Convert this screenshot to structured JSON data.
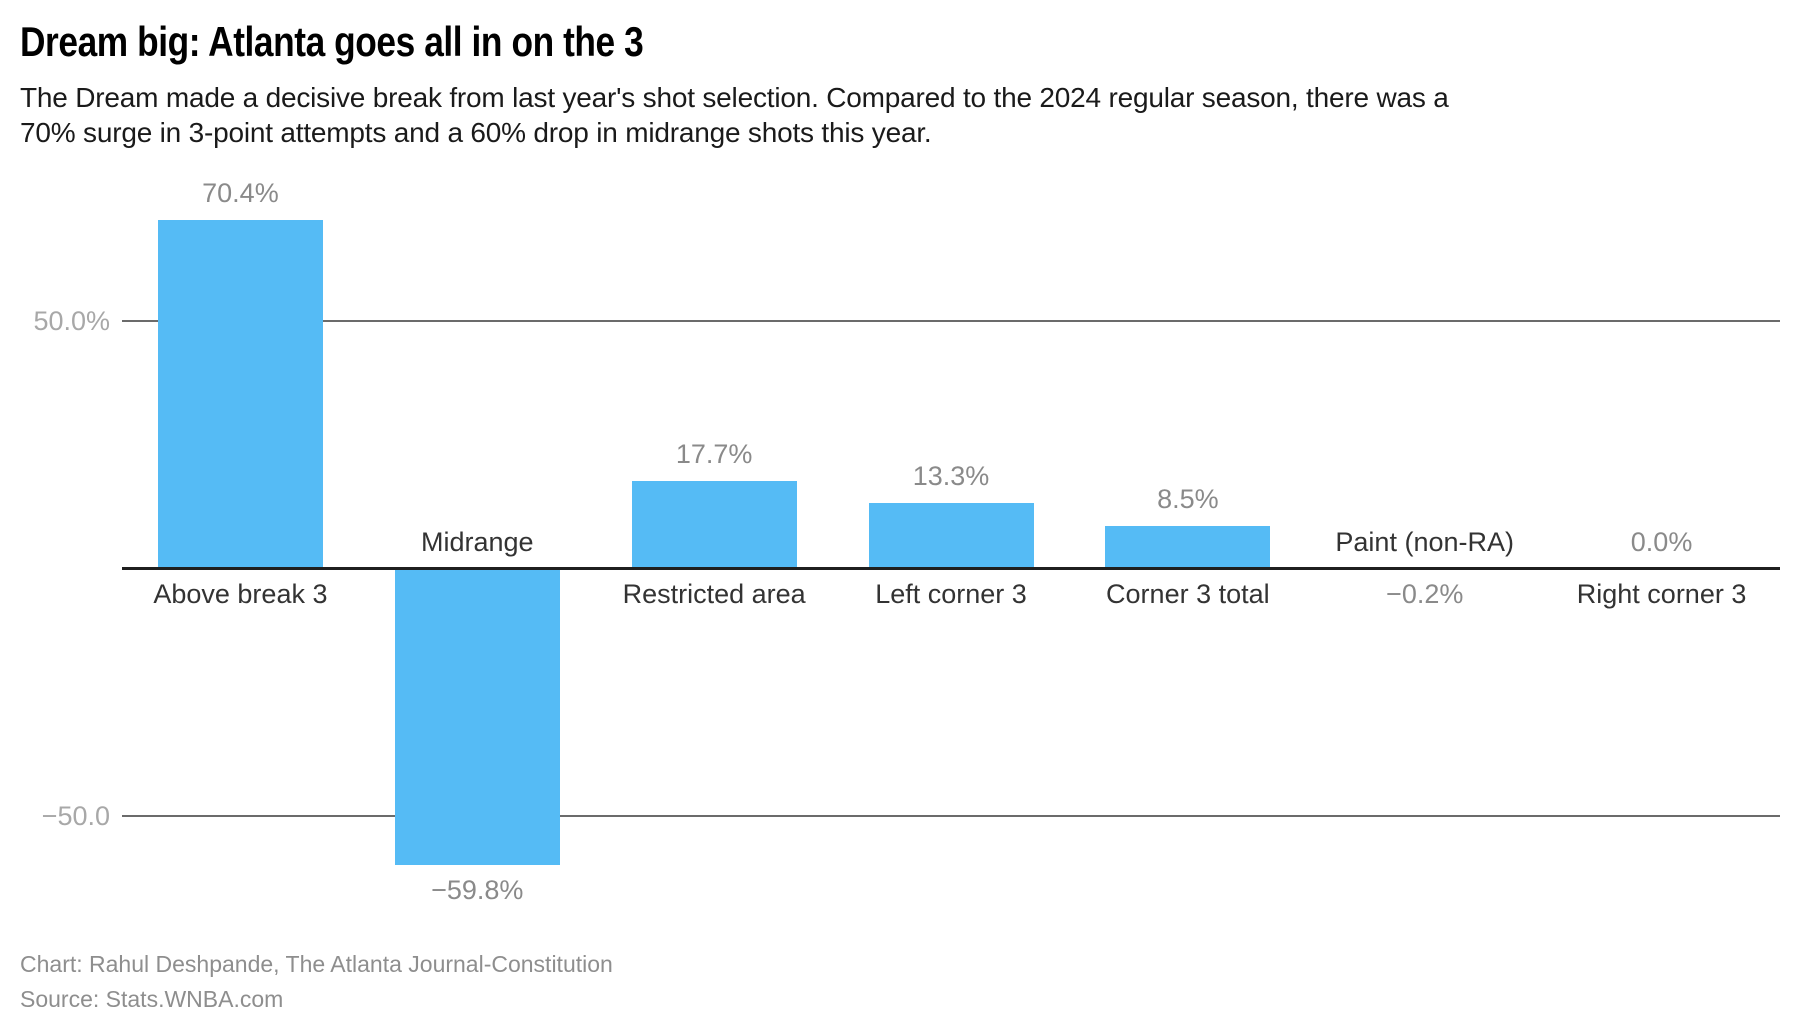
{
  "chart_data": {
    "type": "bar",
    "title": "Dream big: Atlanta goes all in on the 3",
    "subtitle_lines": [
      "The Dream made a decisive break from last year's shot selection. Compared to the 2024 regular season, there was a",
      "70% surge in 3-point attempts and a 60% drop in midrange shots this year."
    ],
    "categories": [
      "Above break 3",
      "Midrange",
      "Restricted area",
      "Left corner 3",
      "Corner 3 total",
      "Paint (non-RA)",
      "Right corner 3"
    ],
    "values": [
      70.4,
      -59.8,
      17.7,
      13.3,
      8.5,
      -0.2,
      0.0
    ],
    "value_labels": [
      "70.4%",
      "−59.8%",
      "17.7%",
      "13.3%",
      "8.5%",
      "−0.2%",
      "0.0%"
    ],
    "xlabel": "",
    "ylabel": "",
    "ylim": [
      -80,
      90
    ],
    "yticks": [
      {
        "value": 50,
        "label": "50.0%"
      },
      {
        "value": -50,
        "label": "−50.0"
      }
    ],
    "grid": "horizontal-ticks-plus-zero-baseline",
    "legend": "none",
    "colors": {
      "bar": "#55bbf5",
      "zero_line": "#1f1f1f",
      "grid_line": "#6b6b6b",
      "tick_label": "#a8a8a8",
      "value_label": "#8a8a8a",
      "category_label": "#333333"
    }
  },
  "footer": {
    "credit": "Chart: Rahul Deshpande, The Atlanta Journal-Constitution",
    "source": "Source: Stats.WNBA.com"
  }
}
